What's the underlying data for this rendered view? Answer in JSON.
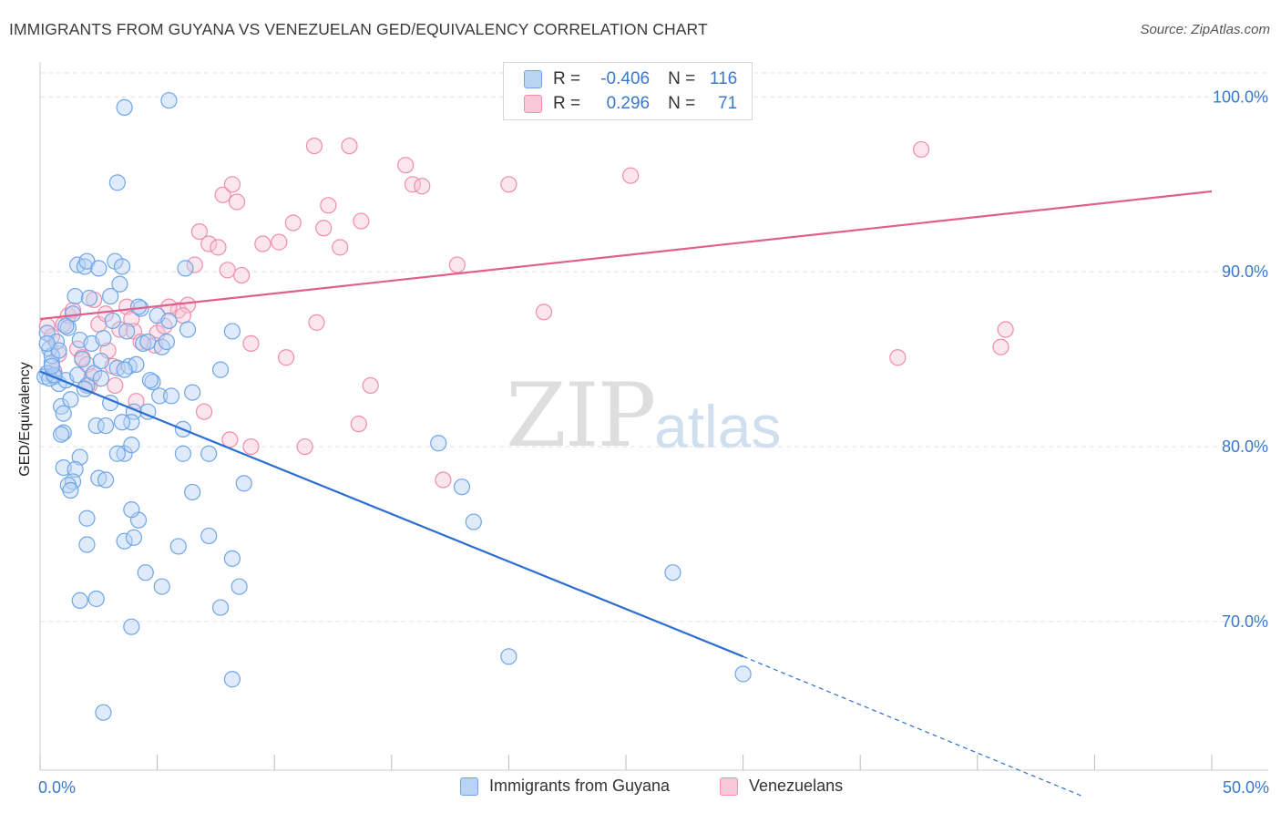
{
  "title": "IMMIGRANTS FROM GUYANA VS VENEZUELAN GED/EQUIVALENCY CORRELATION CHART",
  "source": "Source: ZipAtlas.com",
  "watermark": {
    "zip": "ZIP",
    "atlas": "atlas"
  },
  "colors": {
    "blue": "#6fa5e6",
    "blue_fill": "#b9d3f3",
    "pink": "#f08cac",
    "pink_fill": "#f8c8d8",
    "blue_line": "#2a6fd1",
    "pink_line": "#e0608c",
    "tick_text": "#3a78c9"
  },
  "legend": {
    "rows": [
      {
        "r_label": "R =",
        "r_value": "-0.406",
        "n_label": "N =",
        "n_value": "116"
      },
      {
        "r_label": "R =",
        "r_value": "0.296",
        "n_label": "N =",
        "n_value": "71"
      }
    ]
  },
  "bottom_legend": [
    "Immigrants from Guyana",
    "Venezuelans"
  ],
  "chart_data": {
    "type": "scatter",
    "ylabel": "GED/Equivalency",
    "xlim": [
      0,
      50
    ],
    "ylim": [
      61.5,
      102
    ],
    "x_tick_labels": [
      "0.0%",
      "50.0%"
    ],
    "y_ticks": [
      70,
      80,
      90,
      100
    ],
    "y_tick_labels": [
      "70.0%",
      "80.0%",
      "90.0%",
      "100.0%"
    ],
    "grid": true,
    "series": [
      {
        "name": "Immigrants from Guyana",
        "r": -0.406,
        "n": 116,
        "trend": {
          "x0": 0,
          "y0": 84.3,
          "x1": 30,
          "y1": 68.0,
          "dash_to_x": 44.5,
          "dash_to_y": 60.0
        },
        "points": [
          [
            0.3,
            86.5
          ],
          [
            0.4,
            85.6
          ],
          [
            0.5,
            84.8
          ],
          [
            0.6,
            84.0
          ],
          [
            0.8,
            83.6
          ],
          [
            0.9,
            82.3
          ],
          [
            1.0,
            81.9
          ],
          [
            0.7,
            86.0
          ],
          [
            0.5,
            85.2
          ],
          [
            0.3,
            84.2
          ],
          [
            1.2,
            86.8
          ],
          [
            1.5,
            88.6
          ],
          [
            1.8,
            85.0
          ],
          [
            1.4,
            87.6
          ],
          [
            1.1,
            83.8
          ],
          [
            1.3,
            82.7
          ],
          [
            1.6,
            84.1
          ],
          [
            2.0,
            83.5
          ],
          [
            1.7,
            86.1
          ],
          [
            2.2,
            85.9
          ],
          [
            1.6,
            90.4
          ],
          [
            1.9,
            90.3
          ],
          [
            2.0,
            90.6
          ],
          [
            2.5,
            90.2
          ],
          [
            3.2,
            90.6
          ],
          [
            3.5,
            90.3
          ],
          [
            3.0,
            88.6
          ],
          [
            3.4,
            89.3
          ],
          [
            3.1,
            87.2
          ],
          [
            2.7,
            86.2
          ],
          [
            2.3,
            84.2
          ],
          [
            2.6,
            83.9
          ],
          [
            3.3,
            84.5
          ],
          [
            3.8,
            84.6
          ],
          [
            4.1,
            84.7
          ],
          [
            3.6,
            84.4
          ],
          [
            4.4,
            85.9
          ],
          [
            4.6,
            86.0
          ],
          [
            5.2,
            85.7
          ],
          [
            5.0,
            87.5
          ],
          [
            4.3,
            87.9
          ],
          [
            3.7,
            86.6
          ],
          [
            4.8,
            83.7
          ],
          [
            5.1,
            82.9
          ],
          [
            5.6,
            82.9
          ],
          [
            6.5,
            83.1
          ],
          [
            6.3,
            86.7
          ],
          [
            4.7,
            83.8
          ],
          [
            4.0,
            82.0
          ],
          [
            3.9,
            81.4
          ],
          [
            3.0,
            82.5
          ],
          [
            2.4,
            81.2
          ],
          [
            2.8,
            81.2
          ],
          [
            3.5,
            81.4
          ],
          [
            1.0,
            80.8
          ],
          [
            0.9,
            80.7
          ],
          [
            1.7,
            79.4
          ],
          [
            3.6,
            79.6
          ],
          [
            3.9,
            80.1
          ],
          [
            3.3,
            79.6
          ],
          [
            1.0,
            78.8
          ],
          [
            1.5,
            78.7
          ],
          [
            2.5,
            78.2
          ],
          [
            2.8,
            78.1
          ],
          [
            1.4,
            78.0
          ],
          [
            1.2,
            77.8
          ],
          [
            1.3,
            77.5
          ],
          [
            6.1,
            79.6
          ],
          [
            7.2,
            79.6
          ],
          [
            8.7,
            77.9
          ],
          [
            6.5,
            77.4
          ],
          [
            2.0,
            75.9
          ],
          [
            2.0,
            74.4
          ],
          [
            3.6,
            74.6
          ],
          [
            4.0,
            74.8
          ],
          [
            4.2,
            75.8
          ],
          [
            3.9,
            76.4
          ],
          [
            7.2,
            74.9
          ],
          [
            5.9,
            74.3
          ],
          [
            8.2,
            73.6
          ],
          [
            4.5,
            72.8
          ],
          [
            5.2,
            72.0
          ],
          [
            8.5,
            72.0
          ],
          [
            1.7,
            71.2
          ],
          [
            2.4,
            71.3
          ],
          [
            7.7,
            70.8
          ],
          [
            3.9,
            69.7
          ],
          [
            8.2,
            66.7
          ],
          [
            2.7,
            64.8
          ],
          [
            5.5,
            99.8
          ],
          [
            3.6,
            99.4
          ],
          [
            3.3,
            95.1
          ],
          [
            7.7,
            84.4
          ],
          [
            8.2,
            86.6
          ],
          [
            17.0,
            80.2
          ],
          [
            18.0,
            77.7
          ],
          [
            18.5,
            75.7
          ],
          [
            20.0,
            68.0
          ],
          [
            27.0,
            72.8
          ],
          [
            30.0,
            67.0
          ],
          [
            0.2,
            84.0
          ],
          [
            0.4,
            83.9
          ],
          [
            0.6,
            84.1
          ],
          [
            0.8,
            85.5
          ],
          [
            1.1,
            86.9
          ],
          [
            2.1,
            88.5
          ],
          [
            4.2,
            88.0
          ],
          [
            6.2,
            90.2
          ],
          [
            5.5,
            87.2
          ],
          [
            5.4,
            86.0
          ],
          [
            6.1,
            81.0
          ],
          [
            4.6,
            82.0
          ],
          [
            1.9,
            83.3
          ],
          [
            0.5,
            84.6
          ],
          [
            0.3,
            85.9
          ],
          [
            2.6,
            84.9
          ]
        ]
      },
      {
        "name": "Venezuelans",
        "r": 0.296,
        "n": 71,
        "trend": {
          "x0": 0,
          "y0": 87.3,
          "x1": 50,
          "y1": 94.6
        },
        "points": [
          [
            0.3,
            86.9
          ],
          [
            0.5,
            86.3
          ],
          [
            0.8,
            85.3
          ],
          [
            0.6,
            84.3
          ],
          [
            1.0,
            87.0
          ],
          [
            1.2,
            87.5
          ],
          [
            1.4,
            87.8
          ],
          [
            1.6,
            85.6
          ],
          [
            1.8,
            85.1
          ],
          [
            2.0,
            84.7
          ],
          [
            2.3,
            88.4
          ],
          [
            2.5,
            87.0
          ],
          [
            2.8,
            87.6
          ],
          [
            2.9,
            85.5
          ],
          [
            3.1,
            84.6
          ],
          [
            3.4,
            86.7
          ],
          [
            3.7,
            88.0
          ],
          [
            3.9,
            87.3
          ],
          [
            4.0,
            86.6
          ],
          [
            4.3,
            86.0
          ],
          [
            4.1,
            82.6
          ],
          [
            3.2,
            83.5
          ],
          [
            2.1,
            83.5
          ],
          [
            5.0,
            86.5
          ],
          [
            5.3,
            86.9
          ],
          [
            5.9,
            87.8
          ],
          [
            6.3,
            88.1
          ],
          [
            6.6,
            90.4
          ],
          [
            6.8,
            92.3
          ],
          [
            7.2,
            91.6
          ],
          [
            7.6,
            91.4
          ],
          [
            7.8,
            94.4
          ],
          [
            8.2,
            95.0
          ],
          [
            8.4,
            94.0
          ],
          [
            8.0,
            90.1
          ],
          [
            8.6,
            89.8
          ],
          [
            9.0,
            85.9
          ],
          [
            9.5,
            91.6
          ],
          [
            10.2,
            91.7
          ],
          [
            10.5,
            85.1
          ],
          [
            10.8,
            92.8
          ],
          [
            11.8,
            87.1
          ],
          [
            11.7,
            97.2
          ],
          [
            12.3,
            93.8
          ],
          [
            12.1,
            92.5
          ],
          [
            12.8,
            91.4
          ],
          [
            13.2,
            97.2
          ],
          [
            13.7,
            92.9
          ],
          [
            14.1,
            83.5
          ],
          [
            13.6,
            81.3
          ],
          [
            15.6,
            96.1
          ],
          [
            15.9,
            95.0
          ],
          [
            16.3,
            94.9
          ],
          [
            17.2,
            78.1
          ],
          [
            17.8,
            90.4
          ],
          [
            20.0,
            95.0
          ],
          [
            21.5,
            87.7
          ],
          [
            22.5,
            100.2
          ],
          [
            25.2,
            95.5
          ],
          [
            36.6,
            85.1
          ],
          [
            37.6,
            97.0
          ],
          [
            41.0,
            85.7
          ],
          [
            41.2,
            86.7
          ],
          [
            8.1,
            80.4
          ],
          [
            9.0,
            80.0
          ],
          [
            11.3,
            80.0
          ],
          [
            5.5,
            88.0
          ],
          [
            4.9,
            85.8
          ],
          [
            6.1,
            87.5
          ],
          [
            7.0,
            82.0
          ],
          [
            2.2,
            84.0
          ]
        ]
      }
    ]
  }
}
